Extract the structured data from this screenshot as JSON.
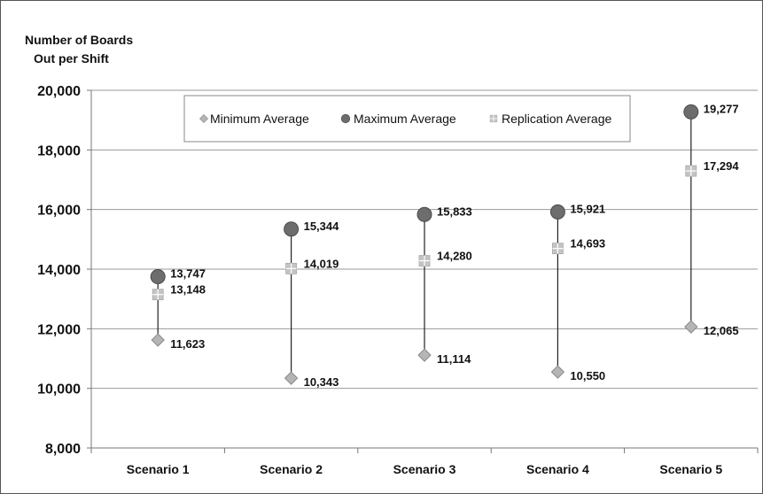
{
  "chart_data": {
    "type": "scatter",
    "ylabel_lines": [
      "Number of Boards",
      "Out per Shift"
    ],
    "ylim": [
      8000,
      20000
    ],
    "yticks": [
      8000,
      10000,
      12000,
      14000,
      16000,
      18000,
      20000
    ],
    "ytick_labels": [
      "8,000",
      "10,000",
      "12,000",
      "14,000",
      "16,000",
      "18,000",
      "20,000"
    ],
    "grid": true,
    "legend_position": "top-center",
    "categories": [
      "Scenario 1",
      "Scenario 2",
      "Scenario 3",
      "Scenario 4",
      "Scenario 5"
    ],
    "series": [
      {
        "name": "Minimum Average",
        "marker": "diamond",
        "color": "#b5b5b5",
        "values": [
          11623,
          10343,
          11114,
          10550,
          12065
        ],
        "labels": [
          "11,623",
          "10,343",
          "11,114",
          "10,550",
          "12,065"
        ]
      },
      {
        "name": "Maximum Average",
        "marker": "circle",
        "color": "#6d6d6d",
        "values": [
          13747,
          15344,
          15833,
          15921,
          19277
        ],
        "labels": [
          "13,747",
          "15,344",
          "15,833",
          "15,921",
          "19,277"
        ]
      },
      {
        "name": "Replication Average",
        "marker": "square-cross",
        "color": "#c4c4c4",
        "values": [
          13148,
          14019,
          14280,
          14693,
          17294
        ],
        "labels": [
          "13,148",
          "14,019",
          "14,280",
          "14,693",
          "17,294"
        ]
      }
    ]
  }
}
